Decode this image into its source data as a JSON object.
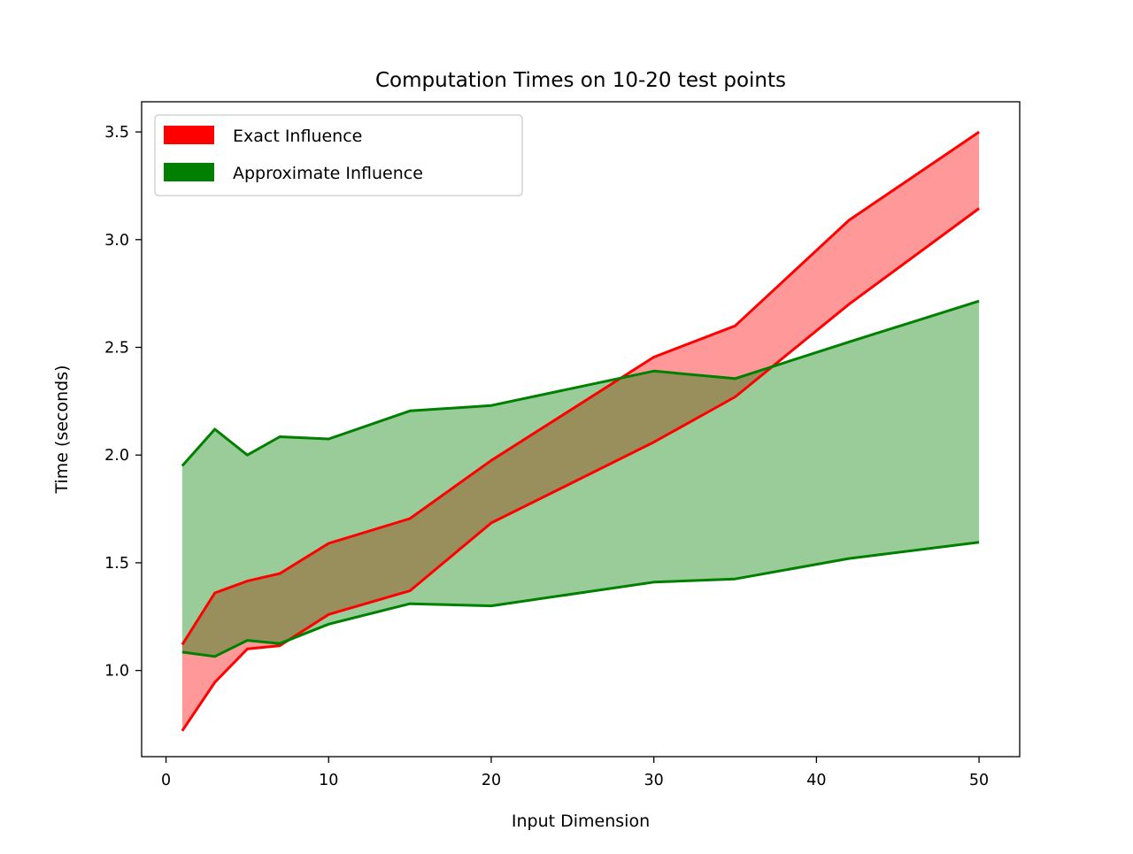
{
  "chart_data": {
    "type": "area",
    "title": "Computation Times on 10-20 test points",
    "xlabel": "Input Dimension",
    "ylabel": "Time (seconds)",
    "xlim": [
      -1.5,
      52.5
    ],
    "ylim": [
      0.6,
      3.64
    ],
    "xticks": [
      0,
      10,
      20,
      30,
      40,
      50
    ],
    "yticks": [
      1.0,
      1.5,
      2.0,
      2.5,
      3.0,
      3.5
    ],
    "xtick_labels": [
      "0",
      "10",
      "20",
      "30",
      "40",
      "50"
    ],
    "ytick_labels": [
      "1.0",
      "1.5",
      "2.0",
      "2.5",
      "3.0",
      "3.5"
    ],
    "grid": false,
    "legend_position": "top-left",
    "x": [
      1,
      3,
      5,
      7,
      10,
      15,
      20,
      30,
      35,
      42,
      50
    ],
    "series": [
      {
        "name": "Exact Influence",
        "color": "#ff0000",
        "fill_opacity": 0.4,
        "upper": [
          1.12,
          1.36,
          1.415,
          1.45,
          1.59,
          1.705,
          1.975,
          2.455,
          2.6,
          3.09,
          3.5
        ],
        "lower": [
          0.72,
          0.945,
          1.1,
          1.115,
          1.26,
          1.37,
          1.685,
          2.06,
          2.27,
          2.7,
          3.145
        ]
      },
      {
        "name": "Approximate Influence",
        "color": "#008000",
        "fill_opacity": 0.4,
        "upper": [
          1.95,
          2.12,
          2.0,
          2.085,
          2.075,
          2.205,
          2.23,
          2.39,
          2.355,
          2.525,
          2.715
        ],
        "lower": [
          1.085,
          1.065,
          1.14,
          1.125,
          1.215,
          1.31,
          1.3,
          1.41,
          1.425,
          1.52,
          1.595
        ]
      }
    ]
  }
}
